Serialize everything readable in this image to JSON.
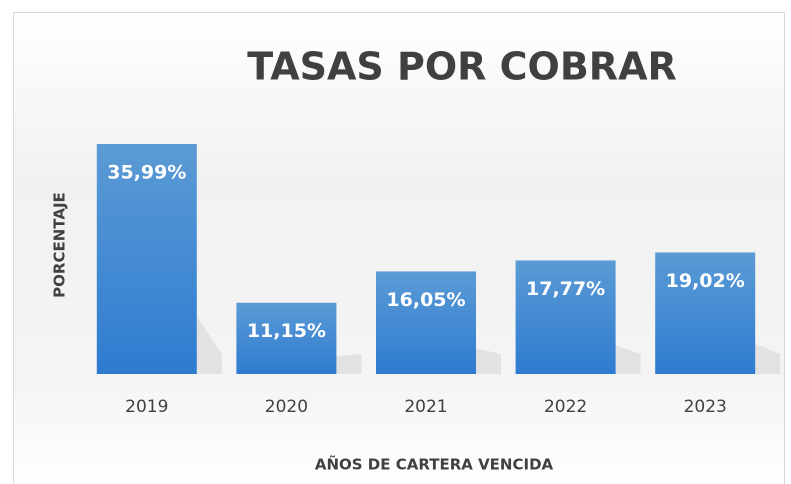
{
  "chart_data": {
    "type": "bar",
    "title": "TASAS POR COBRAR",
    "x_label": "AÑOS DE CARTERA VENCIDA",
    "y_label": "PORCENTAJE",
    "categories": [
      "2019",
      "2020",
      "2021",
      "2022",
      "2023"
    ],
    "values": [
      35.99,
      11.15,
      16.05,
      17.77,
      19.02
    ],
    "value_labels": [
      "35,99%",
      "11,15%",
      "16,05%",
      "17,77%",
      "19,02%"
    ],
    "color": "#4a8fd4"
  }
}
